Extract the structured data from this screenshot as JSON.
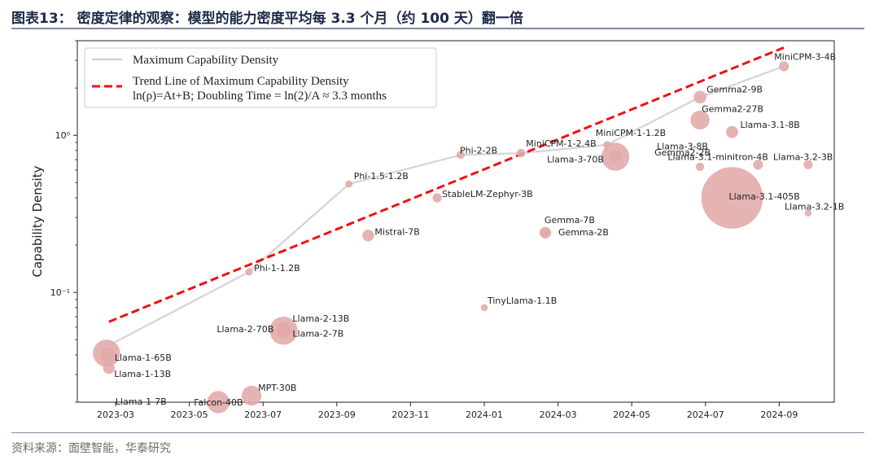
{
  "figure": {
    "title": "图表13：  密度定律的观察：模型的能力密度平均每 3.3 个月（约 100 天）翻一倍",
    "source": "资料来源：面壁智能，华泰研究"
  },
  "chart_data": {
    "type": "scatter",
    "ylabel": "Capability Density",
    "xlabel": "",
    "yscale": "log",
    "ylim": [
      0.02,
      4.0
    ],
    "y_ticks": [
      {
        "value": 1,
        "label": "10⁰"
      },
      {
        "value": 0.1,
        "label": "10⁻¹"
      }
    ],
    "x_ticks": [
      "2023-03",
      "2023-05",
      "2023-07",
      "2023-09",
      "2023-11",
      "2024-01",
      "2024-03",
      "2024-05",
      "2024-07",
      "2024-09"
    ],
    "grid": false,
    "legend_position": "top-left",
    "legend": [
      {
        "label": "Maximum Capability Density",
        "style": "solid-line",
        "color": "#cfcfcf"
      },
      {
        "label": "Trend Line of Maximum Capability Density",
        "style": "dashed-line",
        "color": "#ee1111"
      },
      {
        "label": "ln(ρ)=At+B; Doubling Time = ln(2)/A ≈ 3.3 months",
        "style": "text"
      }
    ],
    "colors": {
      "points": "#e3a9a9",
      "max_line": "#d4d4d4",
      "trend": "#ee1111"
    },
    "points": [
      {
        "label": "Llama-1-65B",
        "date": "2023-02-24",
        "y": 0.041,
        "size": 65
      },
      {
        "label": "Llama-1-13B",
        "date": "2023-02-25",
        "y": 0.04,
        "size": 13
      },
      {
        "label": "Llama-1-7B",
        "date": "2023-02-26",
        "y": 0.033,
        "size": 7
      },
      {
        "label": "Falcon-40B",
        "date": "2023-05-25",
        "y": 0.02,
        "size": 40
      },
      {
        "label": "MPT-30B",
        "date": "2023-06-22",
        "y": 0.022,
        "size": 30
      },
      {
        "label": "Phi-1-1.2B",
        "date": "2023-06-20",
        "y": 0.135,
        "size": 1.2
      },
      {
        "label": "Llama-2-70B",
        "date": "2023-07-18",
        "y": 0.057,
        "size": 70
      },
      {
        "label": "Llama-2-13B",
        "date": "2023-07-18",
        "y": 0.058,
        "size": 13
      },
      {
        "label": "Llama-2-7B",
        "date": "2023-07-18",
        "y": 0.056,
        "size": 7
      },
      {
        "label": "Phi-1.5-1.2B",
        "date": "2023-09-11",
        "y": 0.49,
        "size": 1.2
      },
      {
        "label": "Mistral-7B",
        "date": "2023-09-27",
        "y": 0.23,
        "size": 7
      },
      {
        "label": "StableLM-Zephyr-3B",
        "date": "2023-11-23",
        "y": 0.4,
        "size": 3
      },
      {
        "label": "Phi-2-2B",
        "date": "2023-12-12",
        "y": 0.75,
        "size": 2
      },
      {
        "label": "TinyLlama-1.1B",
        "date": "2024-01-01",
        "y": 0.08,
        "size": 1.1
      },
      {
        "label": "MiniCPM-1-2.4B",
        "date": "2024-02-01",
        "y": 0.77,
        "size": 2.4
      },
      {
        "label": "Gemma-7B",
        "date": "2024-02-21",
        "y": 0.24,
        "size": 7
      },
      {
        "label": "Gemma-2B",
        "date": "2024-02-21",
        "y": 0.24,
        "size": 2
      },
      {
        "label": "MiniCPM-1-1.2B",
        "date": "2024-04-11",
        "y": 0.87,
        "size": 1.2
      },
      {
        "label": "Llama-3-70B",
        "date": "2024-04-18",
        "y": 0.73,
        "size": 70
      },
      {
        "label": "Llama-3-8B",
        "date": "2024-04-18",
        "y": 0.74,
        "size": 8
      },
      {
        "label": "Gemma2-9B",
        "date": "2024-06-27",
        "y": 1.75,
        "size": 9
      },
      {
        "label": "Gemma2-27B",
        "date": "2024-06-27",
        "y": 1.25,
        "size": 27
      },
      {
        "label": "Gemma2-2B",
        "date": "2024-06-27",
        "y": 0.63,
        "size": 2
      },
      {
        "label": "Llama-3.1-8B",
        "date": "2024-07-23",
        "y": 1.05,
        "size": 8
      },
      {
        "label": "Llama-3.1-405B",
        "date": "2024-07-23",
        "y": 0.4,
        "size": 405
      },
      {
        "label": "Llama-3.1-minitron-4B",
        "date": "2024-08-14",
        "y": 0.65,
        "size": 4
      },
      {
        "label": "MiniCPM-3-4B",
        "date": "2024-09-05",
        "y": 2.75,
        "size": 4
      },
      {
        "label": "Llama-3.2-3B",
        "date": "2024-09-25",
        "y": 0.65,
        "size": 3
      },
      {
        "label": "Llama-3.2-1B",
        "date": "2024-09-25",
        "y": 0.32,
        "size": 1
      }
    ],
    "max_line": [
      {
        "date": "2023-02-26",
        "y": 0.046
      },
      {
        "date": "2023-06-20",
        "y": 0.135
      },
      {
        "date": "2023-09-11",
        "y": 0.49
      },
      {
        "date": "2023-12-12",
        "y": 0.75
      },
      {
        "date": "2024-02-01",
        "y": 0.77
      },
      {
        "date": "2024-04-11",
        "y": 0.87
      },
      {
        "date": "2024-06-27",
        "y": 1.75
      },
      {
        "date": "2024-09-05",
        "y": 2.75
      }
    ],
    "trend_line": [
      {
        "date": "2023-02-26",
        "y": 0.065
      },
      {
        "date": "2024-09-08",
        "y": 3.7
      }
    ]
  }
}
